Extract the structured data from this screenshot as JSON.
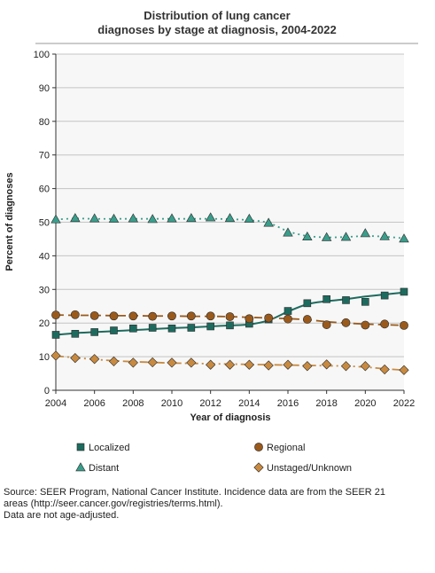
{
  "chart_data": {
    "type": "line",
    "title_lines": [
      "Distribution of lung cancer",
      "diagnoses by stage at diagnosis, 2004-2022"
    ],
    "xlabel": "Year of diagnosis",
    "ylabel": "Percent of diagnoses",
    "xlim": [
      2004,
      2022
    ],
    "ylim": [
      0,
      100
    ],
    "x_ticks": [
      "2004",
      "2006",
      "2008",
      "2010",
      "2012",
      "2014",
      "2016",
      "2018",
      "2020",
      "2022"
    ],
    "y_ticks": [
      "0",
      "10",
      "20",
      "30",
      "40",
      "50",
      "60",
      "70",
      "80",
      "90",
      "100"
    ],
    "grid": true,
    "legend_position": "bottom",
    "x": [
      2004,
      2005,
      2006,
      2007,
      2008,
      2009,
      2010,
      2011,
      2012,
      2013,
      2014,
      2015,
      2016,
      2017,
      2018,
      2019,
      2020,
      2021,
      2022
    ],
    "series": [
      {
        "name": "Localized",
        "marker": "square",
        "color": "#1d6b5e",
        "line": "solid",
        "values": [
          16.5,
          16.8,
          17.3,
          17.8,
          18.4,
          18.6,
          18.4,
          18.6,
          19.0,
          19.3,
          19.8,
          21.1,
          23.6,
          25.9,
          27.1,
          26.8,
          26.3,
          28.2,
          29.3
        ],
        "trend": [
          16.5,
          17.0,
          17.3,
          17.6,
          17.9,
          18.2,
          18.5,
          18.7,
          19.0,
          19.3,
          19.6,
          20.8,
          23.4,
          25.6,
          26.5,
          27.1,
          27.9,
          28.5,
          29.1
        ]
      },
      {
        "name": "Regional",
        "marker": "circle",
        "color": "#9a5a1c",
        "line": "dashed",
        "values": [
          22.4,
          22.5,
          22.2,
          22.1,
          22.1,
          22.0,
          22.1,
          22.1,
          22.1,
          21.9,
          21.3,
          21.5,
          21.2,
          21.1,
          19.5,
          20.1,
          19.4,
          19.7,
          19.3
        ],
        "trend": [
          22.4,
          22.3,
          22.3,
          22.2,
          22.2,
          22.1,
          22.1,
          22.0,
          22.0,
          21.9,
          21.7,
          21.5,
          21.3,
          21.0,
          20.4,
          20.0,
          19.7,
          19.5,
          19.3
        ]
      },
      {
        "name": "Distant",
        "marker": "triangle",
        "color": "#3a9e8b",
        "line": "dotted",
        "values": [
          50.8,
          51.2,
          51.1,
          51.0,
          51.1,
          50.9,
          51.1,
          51.2,
          51.4,
          51.2,
          51.0,
          49.8,
          46.9,
          45.7,
          45.5,
          45.6,
          46.7,
          45.8,
          45.1
        ],
        "trend": [
          50.8,
          51.1,
          51.0,
          51.0,
          51.0,
          51.0,
          51.0,
          51.0,
          51.0,
          50.9,
          50.6,
          49.8,
          47.3,
          45.9,
          45.5,
          45.6,
          45.9,
          45.7,
          45.2
        ]
      },
      {
        "name": "Unstaged/Unknown",
        "marker": "diamond",
        "color": "#c88a40",
        "line": "dashdot",
        "values": [
          10.3,
          9.6,
          9.3,
          8.6,
          8.2,
          8.3,
          8.2,
          8.2,
          7.6,
          7.6,
          7.6,
          7.4,
          7.6,
          7.2,
          7.7,
          7.2,
          7.2,
          6.2,
          6.0
        ],
        "trend": [
          10.2,
          9.7,
          9.2,
          8.8,
          8.5,
          8.3,
          8.1,
          8.0,
          7.9,
          7.8,
          7.7,
          7.6,
          7.5,
          7.4,
          7.3,
          7.2,
          6.9,
          6.4,
          6.0
        ]
      }
    ]
  },
  "source_note": [
    "Source: SEER Program, National Cancer Institute. Incidence data are from the SEER 21",
    "areas (http://seer.cancer.gov/registries/terms.html).",
    "Data are not age-adjusted."
  ]
}
